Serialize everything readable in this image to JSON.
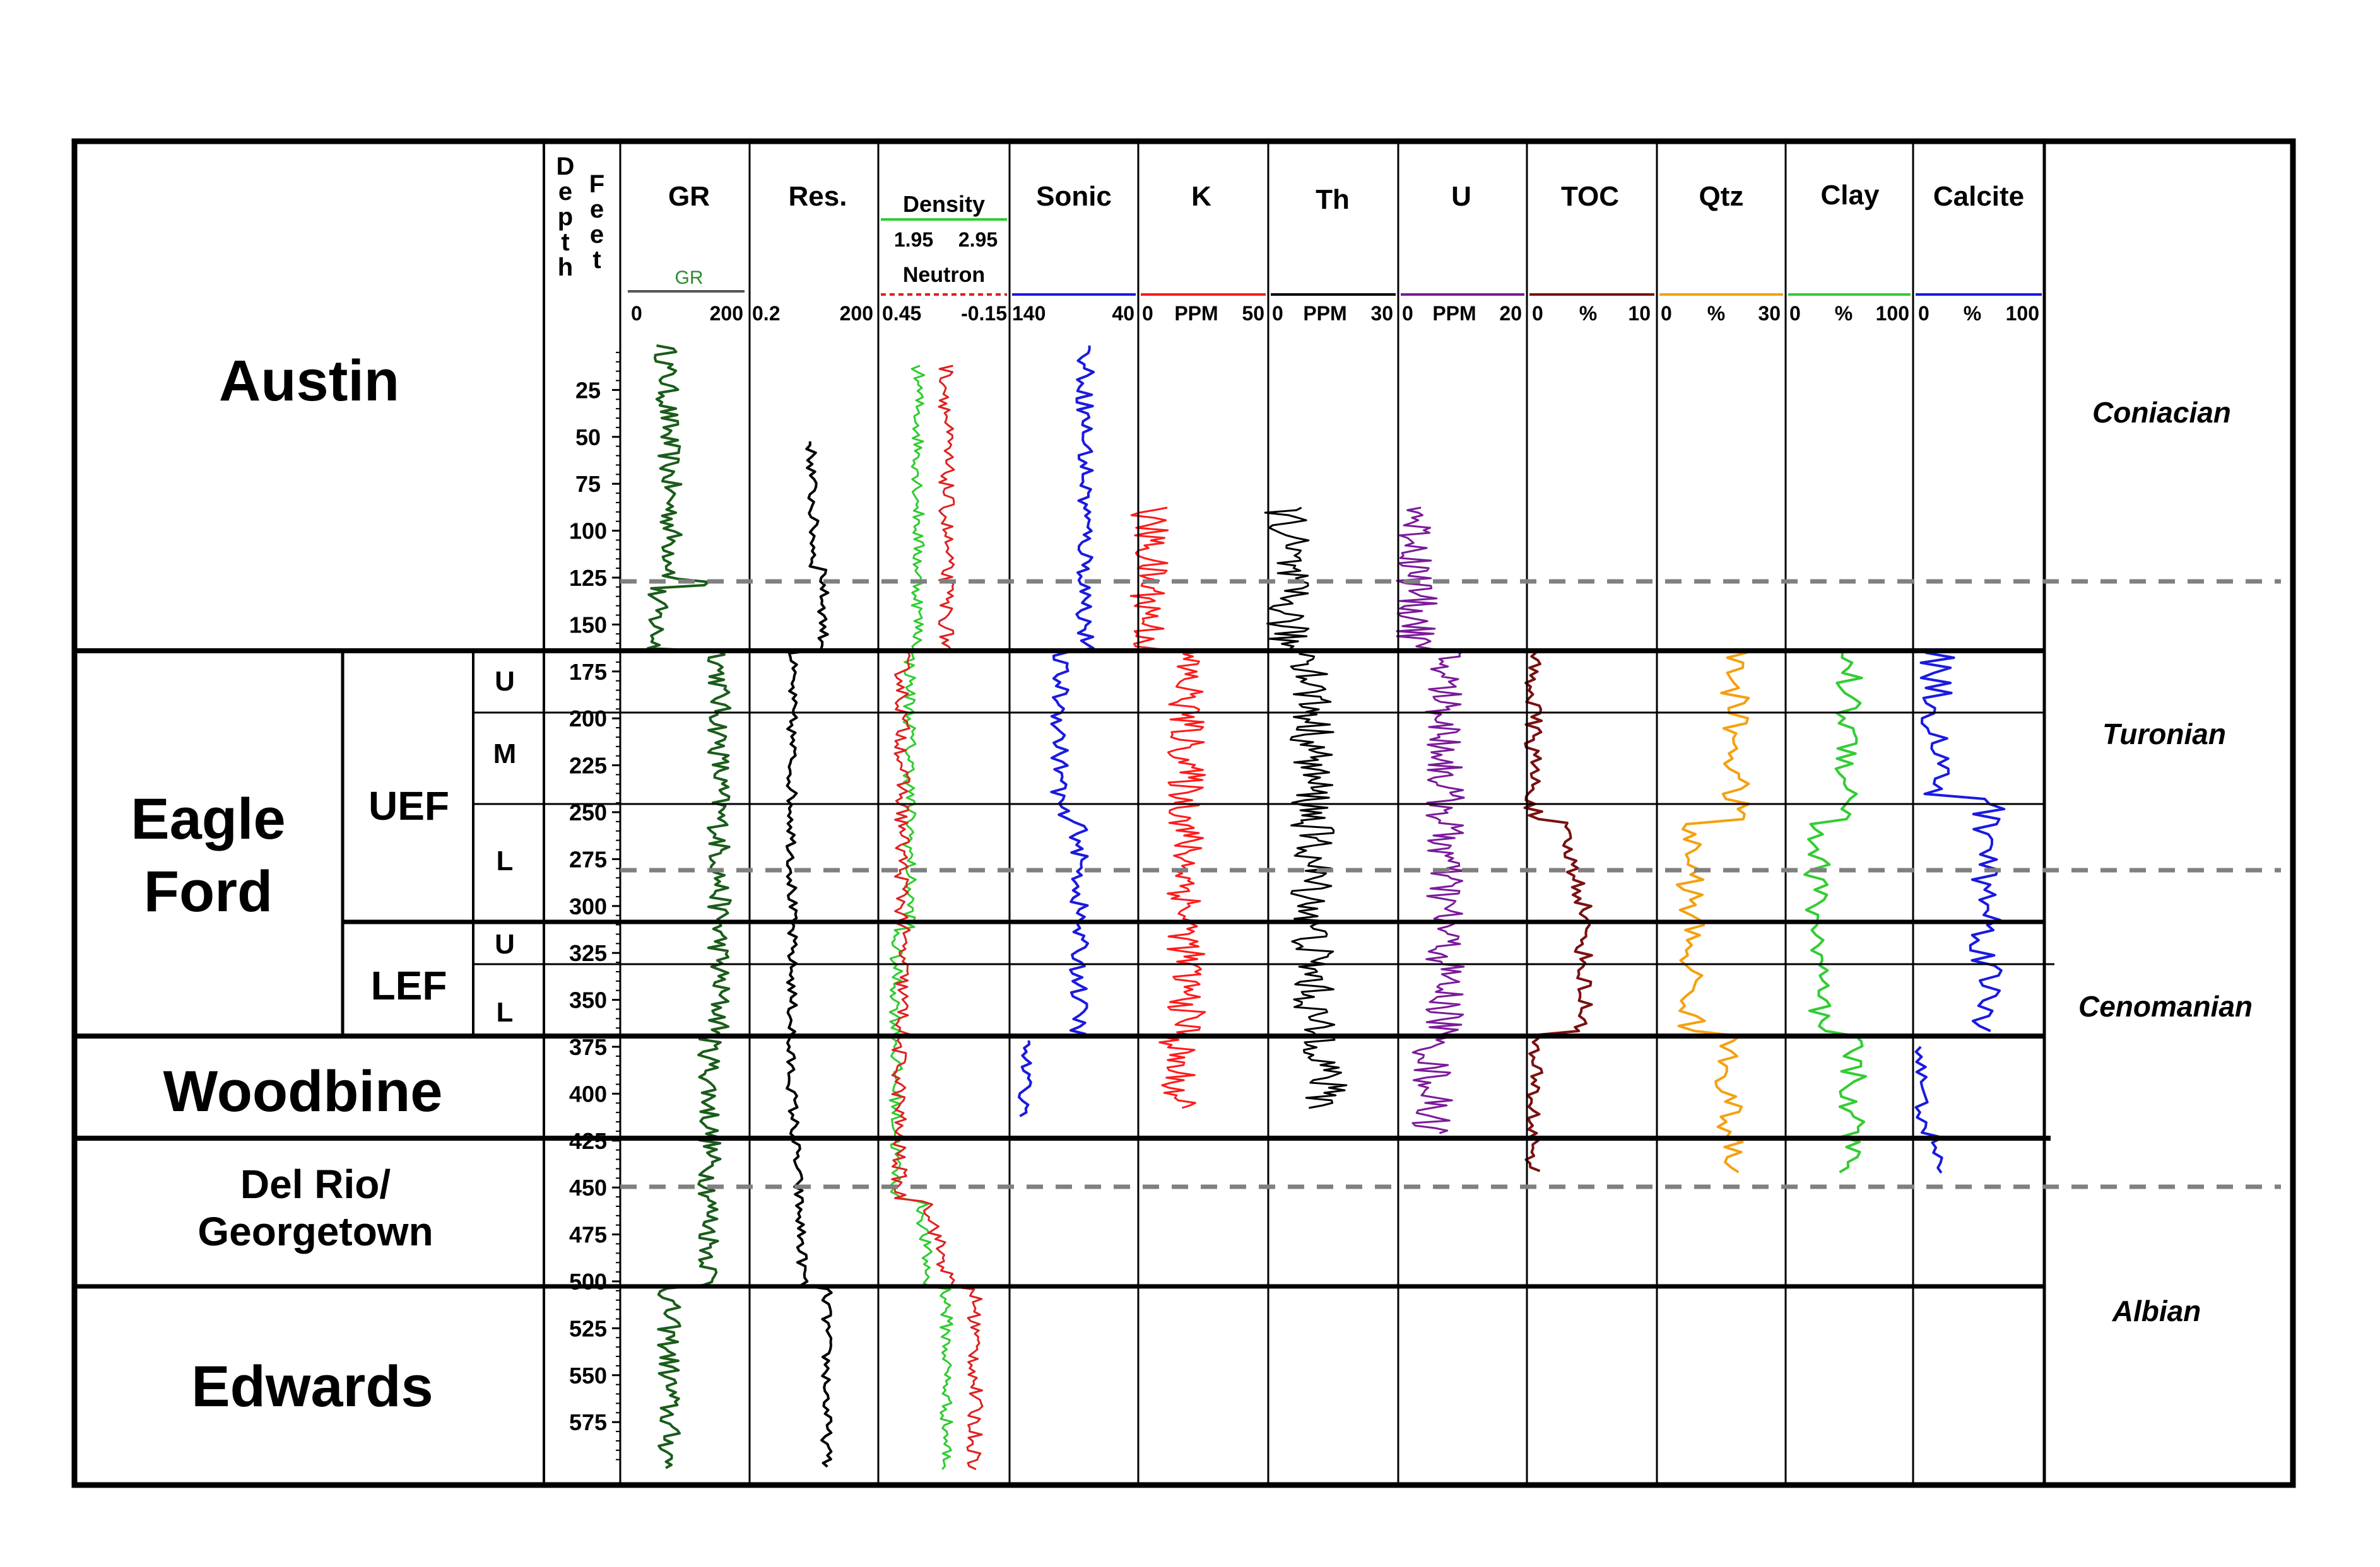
{
  "depth_axis": {
    "label_left": [
      "D",
      "e",
      "p",
      "t",
      "h"
    ],
    "label_right": [
      "F",
      "e",
      "e",
      "t"
    ],
    "ticks": [
      "25",
      "50",
      "75",
      "100",
      "125",
      "150",
      "175",
      "200",
      "225",
      "250",
      "275",
      "300",
      "325",
      "350",
      "375",
      "400",
      "425",
      "450",
      "475",
      "500",
      "525",
      "550",
      "575"
    ]
  },
  "formations": {
    "austin": "Austin",
    "eagle_ford_line1": "Eagle",
    "eagle_ford_line2": "Ford",
    "woodbine": "Woodbine",
    "delrio_line1": "Del Rio/",
    "delrio_line2": "Georgetown",
    "edwards": "Edwards"
  },
  "members": {
    "uef": "UEF",
    "lef": "LEF"
  },
  "subunits": {
    "uef_u": "U",
    "uef_m": "M",
    "uef_l": "L",
    "lef_u": "U",
    "lef_l": "L"
  },
  "stages": {
    "coniacian": "Coniacian",
    "turonian": "Turonian",
    "cenomanian": "Cenomanian",
    "albian": "Albian"
  },
  "tracks": {
    "gr": {
      "title": "GR",
      "curve_label": "GR",
      "scale_min": "0",
      "scale_unit": "",
      "scale_max": "200",
      "color": "#1a5c1a"
    },
    "res": {
      "title": "Res.",
      "scale_min": "0.2",
      "scale_unit": "",
      "scale_max": "200",
      "color": "#000000"
    },
    "dens": {
      "title": "Density",
      "density_min": "1.95",
      "density_max": "2.95",
      "neutron_label": "Neutron",
      "scale_min": "0.45",
      "scale_unit": "",
      "scale_max": "-0.15",
      "color_density": "#2ecc2e",
      "color_neutron": "#e02020"
    },
    "sonic": {
      "title": "Sonic",
      "scale_min": "140",
      "scale_unit": "",
      "scale_max": "40",
      "color": "#1a1ae0"
    },
    "k": {
      "title": "K",
      "scale_min": "0",
      "scale_unit": "PPM",
      "scale_max": "50",
      "color": "#ff1a1a"
    },
    "th": {
      "title": "Th",
      "scale_min": "0",
      "scale_unit": "PPM",
      "scale_max": "30",
      "color": "#000000"
    },
    "u": {
      "title": "U",
      "scale_min": "0",
      "scale_unit": "PPM",
      "scale_max": "20",
      "color": "#7a1a9a"
    },
    "toc": {
      "title": "TOC",
      "scale_min": "0",
      "scale_unit": "%",
      "scale_max": "10",
      "color": "#7a1010"
    },
    "qtz": {
      "title": "Qtz",
      "scale_min": "0",
      "scale_unit": "%",
      "scale_max": "30",
      "color": "#f5a010"
    },
    "clay": {
      "title": "Clay",
      "scale_min": "0",
      "scale_unit": "%",
      "scale_max": "100",
      "color": "#33cc33"
    },
    "calcite": {
      "title": "Calcite",
      "scale_min": "0",
      "scale_unit": "%",
      "scale_max": "100",
      "color": "#1a1ae0"
    }
  }
}
